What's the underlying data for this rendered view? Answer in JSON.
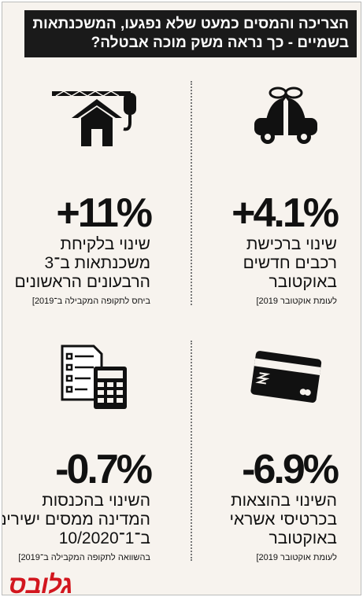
{
  "header": {
    "title_lines": [
      "הצריכה והמסים כמעט שלא נפגעו, המשכנתאות",
      "בשמיים - כך נראה משק מוכה אבטלה?"
    ]
  },
  "panels": [
    {
      "value": "+4.1%",
      "lines": [
        "שינוי ברכישת",
        "רכבים חדשים",
        "באוקטובר"
      ],
      "note": "לעומת אוקטובר 2019]"
    },
    {
      "value": "+11%",
      "lines": [
        "שינוי בלקיחת",
        "משכנתאות ב־3",
        "הרבעונים הראשונים"
      ],
      "note": "ביחס לתקופה המקבילה ב־2019]"
    },
    {
      "value": "-6.9%",
      "lines": [
        "השינוי בהוצאות",
        "בכרטיסי אשראי",
        "באוקטובר"
      ],
      "note": "לעומת אוקטובר 2019]"
    },
    {
      "value": "-0.7%",
      "lines": [
        "השינוי בהכנסות",
        "המדינה ממסים ישירים",
        "ב־1־10/2020"
      ],
      "note": "בהשוואה לתקופה המקבילה ב־2019]"
    }
  ],
  "logo": "גלובס"
}
